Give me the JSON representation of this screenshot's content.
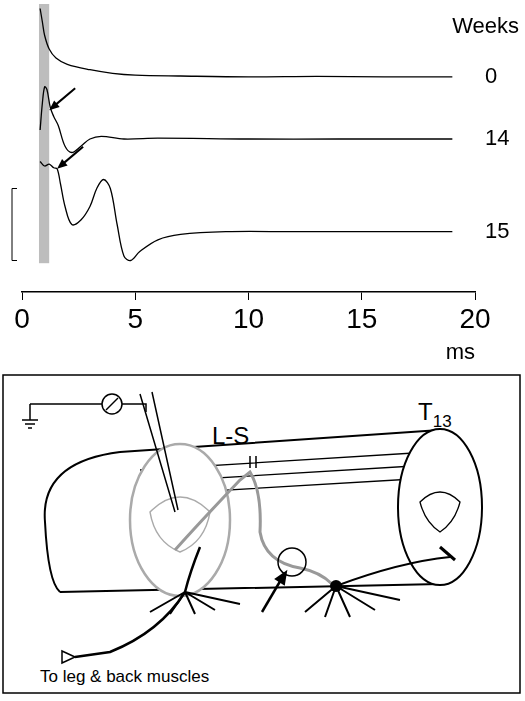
{
  "chart_data": {
    "type": "line",
    "x_axis_label": "ms",
    "series_label_title": "Weeks",
    "xlim": [
      0,
      20
    ],
    "xticks": [
      0,
      5,
      10,
      15,
      20
    ],
    "ylim": [
      0,
      320
    ],
    "tick_labels": "x",
    "grid": false,
    "stimulus_band": [
      0.75,
      1.2
    ],
    "scale_bar": [
      35,
      115
    ],
    "series": [
      {
        "name": "0",
        "color": "#000000",
        "x": [
          0.8,
          0.9,
          1.0,
          1.2,
          1.5,
          2,
          3,
          4,
          5,
          7,
          10,
          13,
          16,
          19
        ],
        "values": [
          315,
          300,
          285,
          270,
          260,
          253,
          247,
          243,
          241,
          240,
          239,
          239.5,
          239,
          239
        ]
      },
      {
        "name": "14",
        "color": "#000000",
        "x": [
          0.8,
          0.9,
          1.0,
          1.1,
          1.25,
          1.4,
          1.6,
          1.9,
          2.2,
          2.6,
          3.0,
          3.5,
          4.5,
          6,
          10,
          14,
          19
        ],
        "values": [
          180,
          210,
          228,
          225,
          205,
          195,
          185,
          162,
          155,
          162,
          170,
          173,
          170,
          171,
          170,
          170,
          170
        ]
      },
      {
        "name": "15",
        "color": "#000000",
        "x": [
          0.8,
          1.0,
          1.2,
          1.4,
          1.55,
          1.7,
          1.9,
          2.2,
          2.6,
          3.0,
          3.3,
          3.6,
          3.9,
          4.2,
          4.5,
          4.8,
          5.2,
          6,
          7,
          9,
          12,
          15,
          19
        ],
        "values": [
          145,
          140,
          142,
          138,
          137,
          120,
          95,
          75,
          80,
          95,
          115,
          125,
          115,
          75,
          40,
          35,
          45,
          58,
          64,
          67,
          67,
          67,
          67
        ]
      }
    ],
    "arrows": [
      {
        "x": 1.2,
        "y": 202
      },
      {
        "x": 1.55,
        "y": 137
      }
    ]
  },
  "diagram": {
    "labels": {
      "lumbosacral": "L-S",
      "thoracic": "T13",
      "muscles": "To leg & back muscles"
    }
  }
}
